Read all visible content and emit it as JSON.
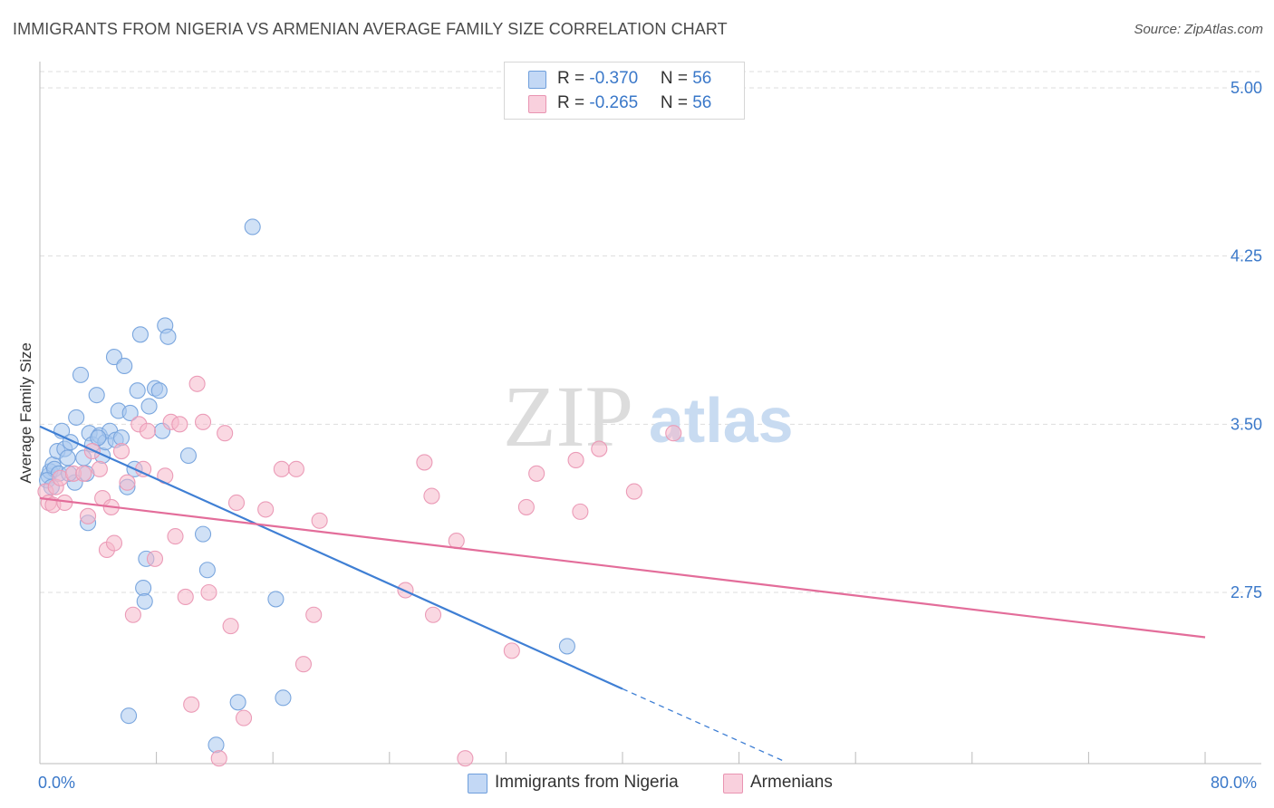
{
  "title": "IMMIGRANTS FROM NIGERIA VS ARMENIAN AVERAGE FAMILY SIZE CORRELATION CHART",
  "source": "Source: ZipAtlas.com",
  "watermark": {
    "zip": "ZIP",
    "atlas": "atlas"
  },
  "legend": {
    "rows": [
      {
        "r_label": "R = ",
        "r_value": "-0.370",
        "n_label": "N = ",
        "n_value": "56",
        "color": "#a9c8ef"
      },
      {
        "r_label": "R = ",
        "r_value": "-0.265",
        "n_label": "N = ",
        "n_value": "56",
        "color": "#f5b8cb"
      }
    ]
  },
  "bottom_legend": [
    "Immigrants from Nigeria",
    "Armenians"
  ],
  "colors": {
    "blue": "#3f7fd4",
    "pink": "#e36d9a",
    "blue_fill": "#a9c8ef",
    "pink_fill": "#f5b8cb",
    "grid": "#dddddd",
    "axis_text": "#3a78c9"
  },
  "chart_data": {
    "type": "scatter",
    "title": "IMMIGRANTS FROM NIGERIA VS ARMENIAN AVERAGE FAMILY SIZE CORRELATION CHART",
    "ylabel": "Average Family Size",
    "xlabel": "",
    "xlim": [
      0,
      80
    ],
    "ylim": [
      2.0,
      5.1
    ],
    "x_ticks": [
      "0.0%",
      "80.0%"
    ],
    "y_ticks": [
      {
        "value": 2.75,
        "label": "2.75"
      },
      {
        "value": 3.5,
        "label": "3.50"
      },
      {
        "value": 4.25,
        "label": "4.25"
      },
      {
        "value": 5.0,
        "label": "5.00"
      }
    ],
    "series": [
      {
        "name": "Immigrants from Nigeria",
        "color": "#3f7fd4",
        "points": [
          [
            0.6,
            3.27
          ],
          [
            0.7,
            3.29
          ],
          [
            0.9,
            3.32
          ],
          [
            1.0,
            3.3
          ],
          [
            1.2,
            3.38
          ],
          [
            1.3,
            3.28
          ],
          [
            1.5,
            3.47
          ],
          [
            1.7,
            3.39
          ],
          [
            1.9,
            3.35
          ],
          [
            2.1,
            3.42
          ],
          [
            2.4,
            3.24
          ],
          [
            2.5,
            3.53
          ],
          [
            2.8,
            3.72
          ],
          [
            3.0,
            3.35
          ],
          [
            3.2,
            3.28
          ],
          [
            3.3,
            3.06
          ],
          [
            3.4,
            3.46
          ],
          [
            3.6,
            3.41
          ],
          [
            3.9,
            3.63
          ],
          [
            4.1,
            3.45
          ],
          [
            4.3,
            3.36
          ],
          [
            4.5,
            3.42
          ],
          [
            4.8,
            3.47
          ],
          [
            5.1,
            3.8
          ],
          [
            5.2,
            3.43
          ],
          [
            5.4,
            3.56
          ],
          [
            5.6,
            3.44
          ],
          [
            5.8,
            3.76
          ],
          [
            6.0,
            3.22
          ],
          [
            6.2,
            3.55
          ],
          [
            6.5,
            3.3
          ],
          [
            6.7,
            3.65
          ],
          [
            6.9,
            3.9
          ],
          [
            7.1,
            2.77
          ],
          [
            7.2,
            2.71
          ],
          [
            7.3,
            2.9
          ],
          [
            7.5,
            3.58
          ],
          [
            7.9,
            3.66
          ],
          [
            8.2,
            3.65
          ],
          [
            8.4,
            3.47
          ],
          [
            8.6,
            3.94
          ],
          [
            8.8,
            3.89
          ],
          [
            10.2,
            3.36
          ],
          [
            11.2,
            3.01
          ],
          [
            11.5,
            2.85
          ],
          [
            13.6,
            2.26
          ],
          [
            14.6,
            4.38
          ],
          [
            16.2,
            2.72
          ],
          [
            16.7,
            2.28
          ],
          [
            12.1,
            2.07
          ],
          [
            6.1,
            2.2
          ],
          [
            36.2,
            2.51
          ],
          [
            0.5,
            3.25
          ],
          [
            0.8,
            3.22
          ],
          [
            4.0,
            3.44
          ],
          [
            2.0,
            3.28
          ]
        ]
      },
      {
        "name": "Armenians",
        "color": "#e36d9a",
        "points": [
          [
            0.4,
            3.2
          ],
          [
            0.6,
            3.15
          ],
          [
            0.9,
            3.14
          ],
          [
            1.1,
            3.22
          ],
          [
            1.4,
            3.26
          ],
          [
            1.7,
            3.15
          ],
          [
            2.3,
            3.28
          ],
          [
            3.0,
            3.28
          ],
          [
            3.3,
            3.09
          ],
          [
            3.6,
            3.38
          ],
          [
            4.1,
            3.3
          ],
          [
            4.3,
            3.17
          ],
          [
            4.6,
            2.94
          ],
          [
            4.9,
            3.13
          ],
          [
            5.1,
            2.97
          ],
          [
            5.6,
            3.38
          ],
          [
            6.0,
            3.24
          ],
          [
            6.4,
            2.65
          ],
          [
            6.8,
            3.5
          ],
          [
            7.1,
            3.3
          ],
          [
            7.4,
            3.47
          ],
          [
            7.9,
            2.9
          ],
          [
            8.6,
            3.27
          ],
          [
            9.0,
            3.51
          ],
          [
            9.3,
            3.0
          ],
          [
            9.6,
            3.5
          ],
          [
            10.0,
            2.73
          ],
          [
            10.4,
            2.25
          ],
          [
            10.8,
            3.68
          ],
          [
            11.2,
            3.51
          ],
          [
            11.6,
            2.75
          ],
          [
            12.3,
            2.01
          ],
          [
            12.7,
            3.46
          ],
          [
            13.1,
            2.6
          ],
          [
            13.5,
            3.15
          ],
          [
            14.0,
            2.19
          ],
          [
            15.5,
            3.12
          ],
          [
            16.6,
            3.3
          ],
          [
            17.6,
            3.3
          ],
          [
            18.1,
            2.43
          ],
          [
            18.8,
            2.65
          ],
          [
            19.2,
            3.07
          ],
          [
            25.1,
            2.76
          ],
          [
            26.4,
            3.33
          ],
          [
            26.9,
            3.18
          ],
          [
            27.0,
            2.65
          ],
          [
            28.6,
            2.98
          ],
          [
            29.2,
            2.01
          ],
          [
            32.4,
            2.49
          ],
          [
            33.4,
            3.13
          ],
          [
            34.1,
            3.28
          ],
          [
            36.8,
            3.34
          ],
          [
            37.1,
            3.11
          ],
          [
            38.4,
            3.39
          ],
          [
            40.8,
            3.2
          ],
          [
            43.5,
            3.46
          ]
        ]
      }
    ],
    "trendlines": [
      {
        "series": "Immigrants from Nigeria",
        "x": [
          0,
          40
        ],
        "y": [
          3.49,
          2.32
        ],
        "dashed_extension": {
          "x": [
            40,
            51
          ],
          "y": [
            2.32,
            2.0
          ]
        }
      },
      {
        "series": "Armenians",
        "x": [
          0,
          80
        ],
        "y": [
          3.17,
          2.55
        ]
      }
    ],
    "grid": true,
    "legend_position": "top-center"
  }
}
